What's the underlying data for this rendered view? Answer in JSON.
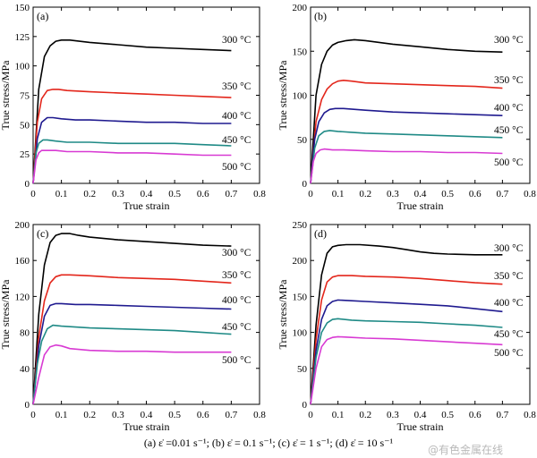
{
  "chart_data": [
    {
      "type": "line",
      "panel_label": "(a)",
      "xlabel": "True strain",
      "ylabel": "True stress/MPa",
      "xlim": [
        0,
        0.8
      ],
      "ylim": [
        0,
        150
      ],
      "xticks": [
        "0",
        "0.1",
        "0.2",
        "0.3",
        "0.4",
        "0.5",
        "0.6",
        "0.7",
        "0.8"
      ],
      "yticks": [
        "0",
        "25",
        "50",
        "75",
        "100",
        "125",
        "150"
      ],
      "series": [
        {
          "name": "300 °C",
          "color": "#000000",
          "x": [
            0,
            0.02,
            0.04,
            0.06,
            0.08,
            0.1,
            0.13,
            0.2,
            0.3,
            0.4,
            0.5,
            0.6,
            0.7
          ],
          "y": [
            0,
            80,
            108,
            117,
            121,
            122,
            122,
            120,
            118,
            116,
            115,
            114,
            113
          ]
        },
        {
          "name": "350 °C",
          "color": "#e3261b",
          "x": [
            0,
            0.015,
            0.03,
            0.05,
            0.07,
            0.09,
            0.12,
            0.2,
            0.3,
            0.4,
            0.5,
            0.6,
            0.7
          ],
          "y": [
            0,
            52,
            72,
            79,
            80,
            80,
            79,
            78,
            77,
            76,
            75,
            74,
            73
          ]
        },
        {
          "name": "400 °C",
          "color": "#1f1a8f",
          "x": [
            0,
            0.015,
            0.03,
            0.05,
            0.07,
            0.1,
            0.15,
            0.2,
            0.3,
            0.4,
            0.5,
            0.6,
            0.7
          ],
          "y": [
            0,
            38,
            52,
            56,
            56,
            55,
            54,
            54,
            53,
            52,
            52,
            51,
            51
          ]
        },
        {
          "name": "450 °C",
          "color": "#1f8a86",
          "x": [
            0,
            0.01,
            0.02,
            0.035,
            0.05,
            0.08,
            0.12,
            0.2,
            0.3,
            0.4,
            0.5,
            0.6,
            0.7
          ],
          "y": [
            0,
            26,
            34,
            37,
            37,
            36,
            35,
            35,
            34,
            34,
            34,
            33,
            32
          ]
        },
        {
          "name": "500 °C",
          "color": "#d83ad3",
          "x": [
            0,
            0.01,
            0.02,
            0.03,
            0.05,
            0.08,
            0.12,
            0.2,
            0.3,
            0.4,
            0.5,
            0.6,
            0.7
          ],
          "y": [
            0,
            20,
            26,
            28,
            28,
            28,
            27,
            27,
            26,
            26,
            25,
            24,
            24
          ]
        }
      ]
    },
    {
      "type": "line",
      "panel_label": "(b)",
      "xlabel": "True strain",
      "ylabel": "True stress/MPa",
      "xlim": [
        0,
        0.8
      ],
      "ylim": [
        0,
        200
      ],
      "xticks": [
        "0",
        "0.1",
        "0.2",
        "0.3",
        "0.4",
        "0.5",
        "0.6",
        "0.7",
        "0.8"
      ],
      "yticks": [
        "0",
        "50",
        "100",
        "150",
        "200"
      ],
      "series": [
        {
          "name": "300 °C",
          "color": "#000000",
          "x": [
            0,
            0.02,
            0.04,
            0.06,
            0.08,
            0.1,
            0.13,
            0.16,
            0.2,
            0.3,
            0.4,
            0.5,
            0.6,
            0.7
          ],
          "y": [
            0,
            100,
            135,
            150,
            157,
            160,
            162,
            163,
            162,
            158,
            155,
            152,
            150,
            149
          ]
        },
        {
          "name": "350 °C",
          "color": "#e3261b",
          "x": [
            0,
            0.02,
            0.04,
            0.06,
            0.08,
            0.1,
            0.12,
            0.15,
            0.2,
            0.3,
            0.4,
            0.5,
            0.6,
            0.7
          ],
          "y": [
            0,
            70,
            95,
            107,
            113,
            116,
            117,
            116,
            114,
            113,
            112,
            111,
            110,
            108
          ]
        },
        {
          "name": "400 °C",
          "color": "#1f1a8f",
          "x": [
            0,
            0.015,
            0.03,
            0.05,
            0.07,
            0.09,
            0.12,
            0.2,
            0.3,
            0.4,
            0.5,
            0.6,
            0.7
          ],
          "y": [
            0,
            50,
            70,
            80,
            84,
            85,
            85,
            83,
            81,
            80,
            79,
            78,
            77
          ]
        },
        {
          "name": "450 °C",
          "color": "#1f8a86",
          "x": [
            0,
            0.015,
            0.03,
            0.05,
            0.07,
            0.1,
            0.15,
            0.2,
            0.3,
            0.4,
            0.5,
            0.6,
            0.7
          ],
          "y": [
            0,
            40,
            54,
            59,
            60,
            59,
            58,
            57,
            56,
            55,
            54,
            53,
            52
          ]
        },
        {
          "name": "500 °C",
          "color": "#d83ad3",
          "x": [
            0,
            0.01,
            0.02,
            0.035,
            0.05,
            0.08,
            0.12,
            0.2,
            0.3,
            0.4,
            0.5,
            0.6,
            0.7
          ],
          "y": [
            0,
            25,
            34,
            38,
            39,
            38,
            38,
            37,
            36,
            36,
            35,
            35,
            34
          ]
        }
      ]
    },
    {
      "type": "line",
      "panel_label": "(c)",
      "xlabel": "True strain",
      "ylabel": "True stress/MPa",
      "xlim": [
        0,
        0.8
      ],
      "ylim": [
        0,
        200
      ],
      "xticks": [
        "0",
        "0.1",
        "0.2",
        "0.3",
        "0.4",
        "0.5",
        "0.6",
        "0.7",
        "0.8"
      ],
      "yticks": [
        "0",
        "40",
        "80",
        "120",
        "160",
        "200"
      ],
      "series": [
        {
          "name": "300 °C",
          "color": "#000000",
          "x": [
            0,
            0.02,
            0.04,
            0.06,
            0.08,
            0.1,
            0.13,
            0.16,
            0.2,
            0.3,
            0.4,
            0.5,
            0.6,
            0.7
          ],
          "y": [
            0,
            100,
            155,
            180,
            188,
            190,
            190,
            188,
            186,
            183,
            181,
            179,
            177,
            176
          ]
        },
        {
          "name": "350 °C",
          "color": "#e3261b",
          "x": [
            0,
            0.02,
            0.04,
            0.06,
            0.08,
            0.1,
            0.13,
            0.2,
            0.3,
            0.4,
            0.5,
            0.6,
            0.7
          ],
          "y": [
            0,
            75,
            115,
            135,
            142,
            144,
            144,
            143,
            141,
            140,
            139,
            137,
            135
          ]
        },
        {
          "name": "400 °C",
          "color": "#1f1a8f",
          "x": [
            0,
            0.02,
            0.04,
            0.06,
            0.08,
            0.1,
            0.15,
            0.2,
            0.3,
            0.4,
            0.5,
            0.6,
            0.7
          ],
          "y": [
            0,
            65,
            98,
            110,
            112,
            112,
            111,
            111,
            110,
            109,
            108,
            107,
            106
          ]
        },
        {
          "name": "450 °C",
          "color": "#1f8a86",
          "x": [
            0,
            0.015,
            0.03,
            0.05,
            0.07,
            0.1,
            0.15,
            0.2,
            0.3,
            0.4,
            0.5,
            0.6,
            0.7
          ],
          "y": [
            0,
            45,
            70,
            84,
            88,
            87,
            86,
            85,
            84,
            83,
            82,
            80,
            78
          ]
        },
        {
          "name": "500 °C",
          "color": "#d83ad3",
          "x": [
            0,
            0.02,
            0.04,
            0.06,
            0.08,
            0.1,
            0.13,
            0.2,
            0.3,
            0.4,
            0.5,
            0.6,
            0.7
          ],
          "y": [
            0,
            30,
            55,
            64,
            66,
            65,
            62,
            60,
            59,
            59,
            58,
            58,
            58
          ]
        }
      ]
    },
    {
      "type": "line",
      "panel_label": "(d)",
      "xlabel": "True strain",
      "ylabel": "True stress/MPa",
      "xlim": [
        0,
        0.8
      ],
      "ylim": [
        0,
        250
      ],
      "xticks": [
        "0",
        "0.1",
        "0.2",
        "0.3",
        "0.4",
        "0.5",
        "0.6",
        "0.7",
        "0.8"
      ],
      "yticks": [
        "0",
        "50",
        "100",
        "150",
        "200",
        "250"
      ],
      "series": [
        {
          "name": "300 °C",
          "color": "#000000",
          "x": [
            0,
            0.02,
            0.04,
            0.06,
            0.08,
            0.1,
            0.13,
            0.18,
            0.25,
            0.3,
            0.35,
            0.4,
            0.45,
            0.5,
            0.6,
            0.7
          ],
          "y": [
            0,
            110,
            180,
            210,
            219,
            221,
            222,
            222,
            220,
            218,
            215,
            212,
            210,
            209,
            208,
            208
          ]
        },
        {
          "name": "350 °C",
          "color": "#e3261b",
          "x": [
            0,
            0.02,
            0.04,
            0.06,
            0.08,
            0.1,
            0.15,
            0.2,
            0.3,
            0.4,
            0.5,
            0.6,
            0.7
          ],
          "y": [
            0,
            90,
            145,
            170,
            177,
            179,
            179,
            178,
            177,
            175,
            172,
            169,
            167
          ]
        },
        {
          "name": "400 °C",
          "color": "#1f1a8f",
          "x": [
            0,
            0.02,
            0.04,
            0.06,
            0.08,
            0.1,
            0.15,
            0.2,
            0.3,
            0.4,
            0.5,
            0.6,
            0.7
          ],
          "y": [
            0,
            75,
            118,
            137,
            143,
            145,
            144,
            143,
            141,
            139,
            137,
            133,
            129
          ]
        },
        {
          "name": "450 °C",
          "color": "#1f8a86",
          "x": [
            0,
            0.02,
            0.04,
            0.06,
            0.08,
            0.1,
            0.15,
            0.2,
            0.3,
            0.4,
            0.5,
            0.6,
            0.7
          ],
          "y": [
            0,
            65,
            100,
            113,
            118,
            119,
            117,
            116,
            115,
            114,
            112,
            110,
            107
          ]
        },
        {
          "name": "500 °C",
          "color": "#d83ad3",
          "x": [
            0,
            0.02,
            0.04,
            0.06,
            0.08,
            0.1,
            0.15,
            0.2,
            0.3,
            0.4,
            0.5,
            0.6,
            0.7
          ],
          "y": [
            0,
            50,
            80,
            90,
            93,
            94,
            93,
            92,
            91,
            89,
            87,
            85,
            83
          ]
        }
      ]
    }
  ],
  "caption": "(a)  ε̇ =0.01 s⁻¹; (b)  ε̇ = 0.1 s⁻¹; (c)  ε̇ = 1 s⁻¹; (d)  ε̇ = 10 s⁻¹",
  "watermark": "@有色金属在线"
}
